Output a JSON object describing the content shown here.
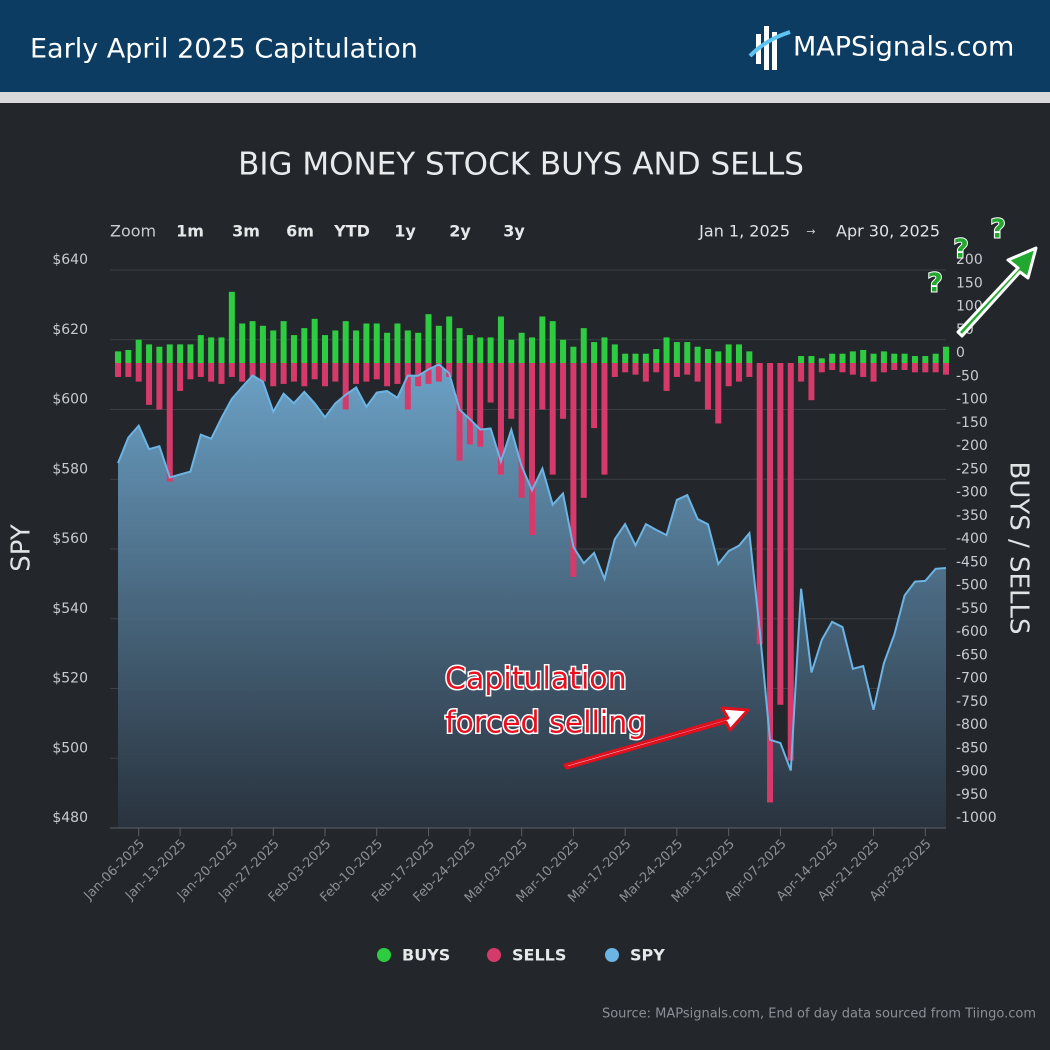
{
  "header": {
    "title": "Early April 2025 Capitulation",
    "logo": "MAPSignals.com"
  },
  "navigator": {
    "label": "Zoom",
    "buttons": [
      "1m",
      "3m",
      "6m",
      "YTD",
      "1y",
      "2y",
      "3y"
    ],
    "from": "Jan 1, 2025",
    "separator": "→",
    "to": "Apr 30, 2025"
  },
  "chart_data": {
    "type": "combo",
    "title": "BIG MONEY STOCK BUYS AND SELLS",
    "y_label": "SPY",
    "y2_label": "BUYS / SELLS",
    "source": "Source: MAPsignals.com, End of day data sourced from Tiingo.com",
    "annotations": [
      "Capitulation",
      "forced selling"
    ],
    "question_marks": [
      "?",
      "?",
      "?"
    ],
    "categories": [
      null,
      null,
      "Jan-06-2025",
      null,
      null,
      null,
      "Jan-13-2025",
      null,
      null,
      null,
      null,
      "Jan-20-2025",
      null,
      null,
      null,
      "Jan-27-2025",
      null,
      null,
      null,
      null,
      "Feb-03-2025",
      null,
      null,
      null,
      null,
      "Feb-10-2025",
      null,
      null,
      null,
      null,
      "Feb-17-2025",
      null,
      null,
      null,
      "Feb-24-2025",
      null,
      null,
      null,
      null,
      "Mar-03-2025",
      null,
      null,
      null,
      null,
      "Mar-10-2025",
      null,
      null,
      null,
      null,
      "Mar-17-2025",
      null,
      null,
      null,
      null,
      "Mar-24-2025",
      null,
      null,
      null,
      null,
      "Mar-31-2025",
      null,
      null,
      null,
      null,
      "Apr-07-2025",
      null,
      null,
      null,
      null,
      "Apr-14-2025",
      null,
      null,
      null,
      "Apr-21-2025",
      null,
      null,
      null,
      null,
      "Apr-28-2025",
      null,
      null
    ],
    "series": [
      {
        "name": "BUYS",
        "color": "#2ecc40",
        "axis": "y2",
        "values": [
          25,
          28,
          50,
          40,
          35,
          40,
          40,
          40,
          60,
          55,
          55,
          153,
          85,
          90,
          80,
          70,
          90,
          60,
          75,
          95,
          60,
          70,
          90,
          70,
          85,
          85,
          65,
          85,
          70,
          65,
          105,
          80,
          100,
          75,
          60,
          55,
          55,
          100,
          50,
          65,
          55,
          100,
          90,
          50,
          35,
          75,
          45,
          55,
          40,
          20,
          20,
          20,
          30,
          55,
          45,
          45,
          35,
          30,
          25,
          40,
          40,
          25,
          0,
          0,
          0,
          0,
          15,
          15,
          10,
          20,
          20,
          25,
          28,
          20,
          25,
          20,
          20,
          15,
          15,
          20,
          35
        ]
      },
      {
        "name": "SELLS",
        "color": "#d63a6a",
        "axis": "y2",
        "values": [
          -30,
          -30,
          -40,
          -90,
          -100,
          -255,
          -60,
          -35,
          -30,
          -40,
          -45,
          -30,
          -40,
          -30,
          -40,
          -50,
          -45,
          -40,
          -50,
          -35,
          -50,
          -40,
          -100,
          -45,
          -40,
          -35,
          -50,
          -45,
          -100,
          -50,
          -45,
          -40,
          -30,
          -210,
          -175,
          -180,
          -85,
          -240,
          -120,
          -290,
          -370,
          -100,
          -240,
          -120,
          -460,
          -290,
          -140,
          -240,
          -30,
          -20,
          -25,
          -40,
          -20,
          -60,
          -30,
          -25,
          -40,
          -100,
          -130,
          -50,
          -40,
          -30,
          -605,
          -945,
          -735,
          -855,
          -40,
          -80,
          -20,
          -15,
          -20,
          -25,
          -30,
          -40,
          -20,
          -15,
          -15,
          -20,
          -20,
          -20,
          -25
        ]
      },
      {
        "name": "SPY",
        "color": "#6cb4e4",
        "values": [
          584.64,
          591.95,
          595.36,
          588.63,
          589.49,
          580.49,
          581.39,
          582.19,
          592.78,
          591.64,
          597.58,
          603.05,
          606.44,
          609.75,
          607.97,
          599.37,
          604.52,
          601.81,
          605.04,
          601.82,
          597.77,
          601.78,
          604.22,
          606.32,
          600.77,
          604.85,
          605.31,
          603.36,
          609.73,
          609.7,
          611.49,
          612.93,
          610.38,
          599.94,
          597.21,
          594.24,
          594.54,
          585.05,
          594.18,
          583.77,
          576.86,
          583.06,
          572.71,
          575.92,
          560.58,
          555.92,
          558.87,
          551.42,
          562.81,
          567.15,
          561.02,
          567.13,
          565.49,
          563.98,
          574.08,
          575.46,
          568.59,
          567.08,
          555.66,
          559.39,
          560.97,
          564.52,
          536.7,
          505.28,
          504.38,
          496.48,
          548.62,
          524.58,
          533.94,
          539.12,
          537.61,
          525.66,
          526.41,
          513.88,
          527.25,
          535.42,
          546.69,
          550.64,
          550.85,
          554.32,
          554.54
        ]
      }
    ],
    "ylim": [
      480,
      640
    ],
    "yticks": [
      {
        "value": 480,
        "label": "$480"
      },
      {
        "value": 500,
        "label": "$500"
      },
      {
        "value": 520,
        "label": "$520"
      },
      {
        "value": 540,
        "label": "$540"
      },
      {
        "value": 560,
        "label": "$560"
      },
      {
        "value": 580,
        "label": "$580"
      },
      {
        "value": 600,
        "label": "$600"
      },
      {
        "value": 620,
        "label": "$620"
      },
      {
        "value": 640,
        "label": "$640"
      }
    ],
    "y2lim": [
      -1000,
      200
    ],
    "y2ticks": [
      -1000,
      -950,
      -900,
      -850,
      -800,
      -750,
      -700,
      -650,
      -600,
      -550,
      -500,
      -450,
      -400,
      -350,
      -300,
      -250,
      -200,
      -150,
      -100,
      -50,
      0,
      50,
      100,
      150,
      200
    ],
    "grid": true,
    "legend": "bottom"
  }
}
